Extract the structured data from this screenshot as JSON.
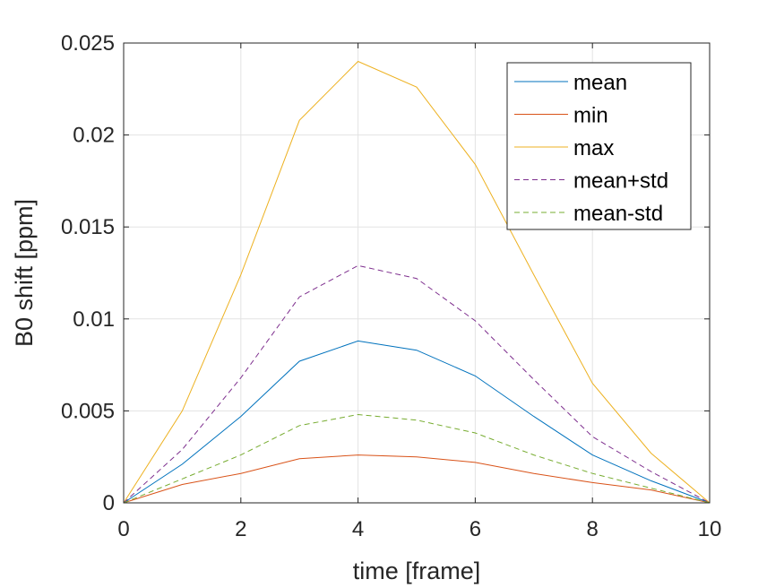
{
  "chart_data": {
    "type": "line",
    "xlabel": "time [frame]",
    "ylabel": "B0 shift [ppm]",
    "xlim": [
      0,
      10
    ],
    "ylim": [
      0,
      0.025
    ],
    "xticks": [
      "0",
      "2",
      "4",
      "6",
      "8",
      "10"
    ],
    "yticks": [
      "0",
      "0.005",
      "0.01",
      "0.015",
      "0.02",
      "0.025"
    ],
    "grid": true,
    "legend_position": "top-right",
    "x": [
      0,
      1,
      2,
      3,
      4,
      5,
      6,
      7,
      8,
      9,
      10
    ],
    "series": [
      {
        "name": "mean",
        "color": "#0072BD",
        "dash": "solid",
        "values": [
          0,
          0.0021,
          0.0047,
          0.0077,
          0.0088,
          0.0083,
          0.0069,
          0.0047,
          0.0026,
          0.0012,
          0
        ]
      },
      {
        "name": "min",
        "color": "#D95319",
        "dash": "solid",
        "values": [
          0,
          0.001,
          0.0016,
          0.0024,
          0.0026,
          0.0025,
          0.0022,
          0.0016,
          0.0011,
          0.0007,
          0
        ]
      },
      {
        "name": "max",
        "color": "#EDB120",
        "dash": "solid",
        "values": [
          0,
          0.005,
          0.0124,
          0.0208,
          0.024,
          0.0226,
          0.0184,
          0.0124,
          0.0065,
          0.0027,
          0
        ]
      },
      {
        "name": "mean+std",
        "color": "#7E2F8E",
        "dash": "dashed",
        "values": [
          0,
          0.0029,
          0.0068,
          0.0112,
          0.0129,
          0.0122,
          0.0099,
          0.0067,
          0.0036,
          0.0017,
          0
        ]
      },
      {
        "name": "mean-std",
        "color": "#77AC30",
        "dash": "dashed",
        "values": [
          0,
          0.0013,
          0.0026,
          0.0042,
          0.0048,
          0.0045,
          0.0038,
          0.0026,
          0.0016,
          0.0008,
          0
        ]
      }
    ]
  }
}
